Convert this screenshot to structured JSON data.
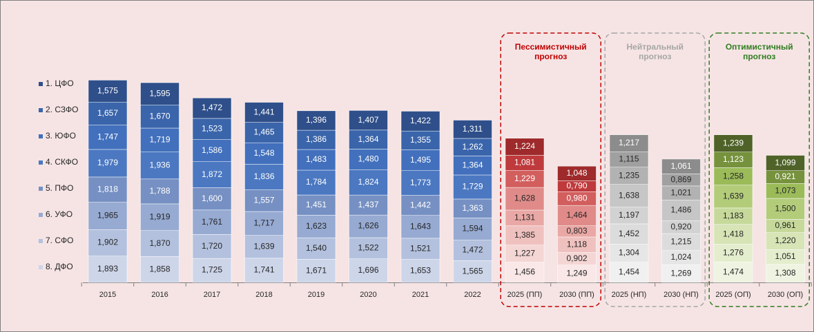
{
  "chart_data": {
    "type": "stacked_bar",
    "categories": [
      "2015",
      "2016",
      "2017",
      "2018",
      "2019",
      "2020",
      "2021",
      "2022",
      "2025 (ПП)",
      "2030 (ПП)",
      "2025 (НП)",
      "2030 (НП)",
      "2025 (ОП)",
      "2030 (ОП)"
    ],
    "series": [
      {
        "name": "1. ЦФО",
        "color": "#2f4f8a",
        "values": [
          1.575,
          1.595,
          1.472,
          1.441,
          1.396,
          1.407,
          1.422,
          1.311,
          1.224,
          1.048,
          1.217,
          1.061,
          1.239,
          1.099
        ],
        "value_labels": [
          "1,575",
          "1,595",
          "1,472",
          "1,441",
          "1,396",
          "1,407",
          "1,422",
          "1,311",
          "1,224",
          "1,048",
          "1,217",
          "1,061",
          "1,239",
          "1,099"
        ]
      },
      {
        "name": "2. СЗФО",
        "color": "#3a65ab",
        "values": [
          1.657,
          1.67,
          1.523,
          1.465,
          1.386,
          1.364,
          1.355,
          1.262,
          1.081,
          0.79,
          1.115,
          0.869,
          1.123,
          0.921
        ],
        "value_labels": [
          "1,657",
          "1,670",
          "1,523",
          "1,465",
          "1,386",
          "1,364",
          "1,355",
          "1,262",
          "1,081",
          "0,790",
          "1,115",
          "0,869",
          "1,123",
          "0,921"
        ]
      },
      {
        "name": "3. ЮФО",
        "color": "#4270bd",
        "values": [
          1.747,
          1.719,
          1.586,
          1.548,
          1.483,
          1.48,
          1.495,
          1.364,
          1.229,
          0.98,
          1.235,
          1.021,
          1.258,
          1.073
        ],
        "value_labels": [
          "1,747",
          "1,719",
          "1,586",
          "1,548",
          "1,483",
          "1,480",
          "1,495",
          "1,364",
          "1,229",
          "0,980",
          "1,235",
          "1,021",
          "1,258",
          "1,073"
        ]
      },
      {
        "name": "4. СКФО",
        "color": "#4b78c1",
        "values": [
          1.979,
          1.936,
          1.872,
          1.836,
          1.784,
          1.824,
          1.773,
          1.729,
          1.628,
          1.464,
          1.638,
          1.486,
          1.639,
          1.5
        ],
        "value_labels": [
          "1,979",
          "1,936",
          "1,872",
          "1,836",
          "1,784",
          "1,824",
          "1,773",
          "1,729",
          "1,628",
          "1,464",
          "1,638",
          "1,486",
          "1,639",
          "1,500"
        ]
      },
      {
        "name": "5. ПФО",
        "color": "#7690c3",
        "values": [
          1.818,
          1.788,
          1.6,
          1.557,
          1.451,
          1.437,
          1.442,
          1.363,
          1.131,
          0.803,
          1.197,
          0.92,
          1.183,
          0.961
        ],
        "value_labels": [
          "1,818",
          "1,788",
          "1,600",
          "1,557",
          "1,451",
          "1,437",
          "1,442",
          "1,363",
          "1,131",
          "0,803",
          "1,197",
          "0,920",
          "1,183",
          "0,961"
        ]
      },
      {
        "name": "6. УФО",
        "color": "#96aad2",
        "values": [
          1.965,
          1.919,
          1.761,
          1.717,
          1.623,
          1.626,
          1.643,
          1.594,
          1.385,
          1.118,
          1.452,
          1.215,
          1.418,
          1.22
        ],
        "value_labels": [
          "1,965",
          "1,919",
          "1,761",
          "1,717",
          "1,623",
          "1,626",
          "1,643",
          "1,594",
          "1,385",
          "1,118",
          "1,452",
          "1,215",
          "1,418",
          "1,220"
        ]
      },
      {
        "name": "7. СФО",
        "color": "#b3c1de",
        "values": [
          1.902,
          1.87,
          1.72,
          1.639,
          1.54,
          1.522,
          1.521,
          1.472,
          1.227,
          0.902,
          1.304,
          1.024,
          1.276,
          1.051
        ],
        "value_labels": [
          "1,902",
          "1,870",
          "1,720",
          "1,639",
          "1,540",
          "1,522",
          "1,521",
          "1,472",
          "1,227",
          "0,902",
          "1,304",
          "1,024",
          "1,276",
          "1,051"
        ]
      },
      {
        "name": "8. ДФО",
        "color": "#cdd5e9",
        "values": [
          1.893,
          1.858,
          1.725,
          1.741,
          1.671,
          1.696,
          1.653,
          1.565,
          1.456,
          1.249,
          1.454,
          1.269,
          1.474,
          1.308
        ],
        "value_labels": [
          "1,893",
          "1,858",
          "1,725",
          "1,741",
          "1,671",
          "1,696",
          "1,653",
          "1,565",
          "1,456",
          "1,249",
          "1,454",
          "1,269",
          "1,474",
          "1,308"
        ]
      }
    ],
    "forecasts": [
      {
        "label": "Пессимистичный прогноз",
        "color": "#c00000",
        "span": [
          8,
          9
        ],
        "colors": [
          "#9e2a2b",
          "#bf3a3c",
          "#d25e5e",
          "#e08b89",
          "#e9a8a5",
          "#efc1be",
          "#f4d6d4",
          "#f9e8e7"
        ]
      },
      {
        "label": "Нейтральный прогноз",
        "color": "#a6a6a6",
        "span": [
          10,
          11
        ],
        "colors": [
          "#8c8c8c",
          "#a0a0a0",
          "#b2b2b2",
          "#c6c6c6",
          "#d2d2d2",
          "#dcdcdc",
          "#e6e6e6",
          "#f0f0f0"
        ]
      },
      {
        "label": "Оптимистичный прогноз",
        "color": "#2e7d1f",
        "span": [
          12,
          13
        ],
        "colors": [
          "#4f6228",
          "#76923c",
          "#9bbb59",
          "#b3cc7a",
          "#c6d99a",
          "#d7e4b6",
          "#e4edcd",
          "#eef4e1"
        ]
      }
    ]
  }
}
